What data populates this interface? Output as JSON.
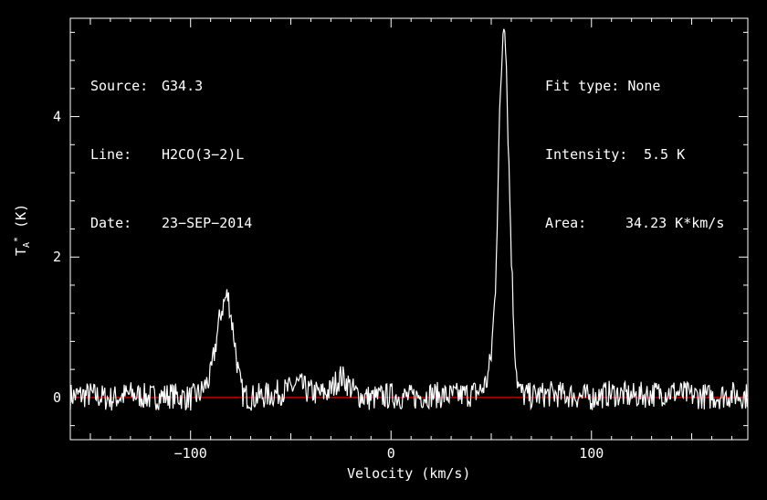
{
  "header": {
    "source_key": "Source:",
    "source_val": "G34.3",
    "line_key": "Line:",
    "line_val": "H2CO(3−2)L",
    "date_key": "Date:",
    "date_val": "23−SEP−2014",
    "fit_key": "Fit type:",
    "fit_val": "None",
    "int_key": "Intensity:",
    "int_val": "5.5 K",
    "area_key": "Area:",
    "area_val": "34.23 K*km/s"
  },
  "chart_data": {
    "type": "line",
    "xlabel": "Velocity (km/s)",
    "ylabel": "T*A (K)",
    "xlim": [
      -160,
      178
    ],
    "ylim": [
      -0.6,
      5.4
    ],
    "xticks": [
      -100,
      0,
      100
    ],
    "xtick_labels": [
      "−100",
      "0",
      "100"
    ],
    "yticks": [
      0,
      2,
      4
    ],
    "ytick_labels": [
      "0",
      "2",
      "4"
    ],
    "baseline": 0,
    "colors": {
      "spectrum": "#ffffff",
      "baseline": "#e00000",
      "frame": "#ffffff"
    },
    "x": [
      -160,
      -150,
      -140,
      -130,
      -120,
      -110,
      -100,
      -95,
      -90,
      -87,
      -85,
      -83,
      -82,
      -81,
      -80,
      -78,
      -76,
      -74,
      -72,
      -70,
      -60,
      -50,
      -47,
      -44,
      -42,
      -40,
      -35,
      -30,
      -28,
      -25,
      -23,
      -21,
      -19,
      -17,
      -15,
      -10,
      0,
      10,
      20,
      30,
      40,
      45,
      48,
      50,
      52,
      53,
      54,
      55,
      56,
      56.5,
      57,
      57.5,
      58,
      59,
      60,
      61,
      62,
      63,
      64,
      66,
      70,
      80,
      90,
      100,
      110,
      120,
      130,
      140,
      150,
      160,
      170,
      178
    ],
    "y": [
      0.02,
      0.04,
      -0.02,
      0.05,
      0.0,
      0.03,
      -0.01,
      0.06,
      0.3,
      0.85,
      1.2,
      1.38,
      1.45,
      1.4,
      1.2,
      0.8,
      0.3,
      0.05,
      0.02,
      0.0,
      0.04,
      0.12,
      0.2,
      0.15,
      0.1,
      0.08,
      0.05,
      0.1,
      0.2,
      0.3,
      0.25,
      0.18,
      0.1,
      0.05,
      0.02,
      -0.01,
      0.03,
      0.0,
      0.04,
      0.02,
      0.05,
      0.1,
      0.25,
      0.6,
      1.5,
      2.6,
      3.8,
      4.6,
      5.3,
      5.45,
      5.2,
      4.8,
      4.2,
      3.1,
      2.1,
      1.2,
      0.6,
      0.25,
      0.1,
      0.04,
      0.02,
      0.05,
      0.03,
      0.0,
      0.06,
      0.02,
      0.05,
      0.08,
      0.03,
      0.01,
      0.04,
      0.02
    ]
  }
}
